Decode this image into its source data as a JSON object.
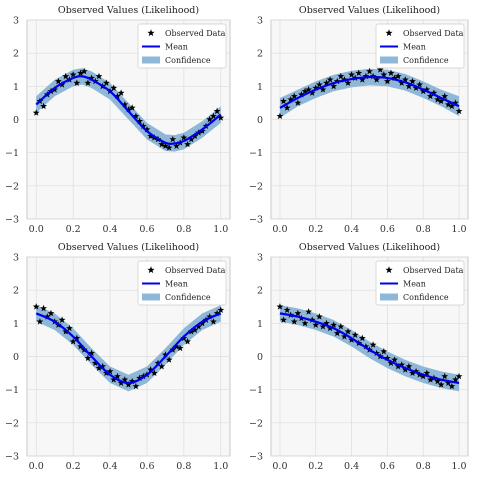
{
  "colors": {
    "mean": "#0000ee",
    "confidence": "#8fb8d8",
    "observed": "#000000",
    "panel_background": "#f7f7f7",
    "grid": "#dddddd"
  },
  "chart_data": [
    {
      "type": "line",
      "title": "Observed Values (Likelihood)",
      "xlim": [
        -0.05,
        1.05
      ],
      "ylim": [
        -3,
        3
      ],
      "xticks": [
        0.0,
        0.2,
        0.4,
        0.6,
        0.8,
        1.0
      ],
      "xtick_labels": [
        "0.0",
        "0.2",
        "0.4",
        "0.6",
        "0.8",
        "1.0"
      ],
      "yticks": [
        -3,
        -2,
        -1,
        0,
        1,
        2,
        3
      ],
      "ytick_labels": [
        "−3",
        "−2",
        "−1",
        "0",
        "1",
        "2",
        "3"
      ],
      "grid": true,
      "legend": {
        "placement": "top-right",
        "entries": [
          "Observed Data",
          "Mean",
          "Confidence"
        ]
      },
      "series": [
        {
          "name": "Mean",
          "x": [
            0.0,
            0.1,
            0.2,
            0.25,
            0.3,
            0.4,
            0.5,
            0.6,
            0.7,
            0.75,
            0.8,
            0.9,
            1.0
          ],
          "values": [
            0.45,
            0.95,
            1.25,
            1.3,
            1.2,
            0.85,
            0.25,
            -0.35,
            -0.7,
            -0.72,
            -0.65,
            -0.3,
            0.15
          ]
        },
        {
          "name": "Confidence",
          "x": [
            0.0,
            0.1,
            0.2,
            0.25,
            0.3,
            0.4,
            0.5,
            0.6,
            0.7,
            0.75,
            0.8,
            0.9,
            1.0
          ],
          "lower": [
            0.2,
            0.7,
            1.0,
            1.05,
            0.95,
            0.6,
            0.0,
            -0.6,
            -0.95,
            -0.97,
            -0.9,
            -0.55,
            -0.1
          ],
          "upper": [
            0.7,
            1.2,
            1.5,
            1.55,
            1.45,
            1.1,
            0.5,
            -0.1,
            -0.45,
            -0.47,
            -0.4,
            -0.05,
            0.4
          ]
        },
        {
          "name": "Observed Data",
          "x": [
            0.0,
            0.02,
            0.04,
            0.06,
            0.08,
            0.1,
            0.12,
            0.14,
            0.16,
            0.18,
            0.2,
            0.22,
            0.24,
            0.26,
            0.28,
            0.3,
            0.32,
            0.34,
            0.36,
            0.38,
            0.4,
            0.42,
            0.44,
            0.46,
            0.48,
            0.5,
            0.52,
            0.54,
            0.56,
            0.58,
            0.6,
            0.62,
            0.64,
            0.66,
            0.68,
            0.7,
            0.72,
            0.74,
            0.76,
            0.78,
            0.8,
            0.82,
            0.84,
            0.86,
            0.88,
            0.9,
            0.92,
            0.94,
            0.96,
            0.98,
            1.0
          ],
          "values": [
            0.2,
            0.55,
            0.4,
            0.75,
            0.85,
            0.9,
            1.15,
            1.05,
            1.3,
            1.2,
            1.35,
            1.1,
            1.4,
            1.45,
            1.1,
            1.25,
            1.15,
            1.3,
            1.0,
            1.1,
            0.85,
            0.95,
            0.7,
            0.8,
            0.45,
            0.3,
            0.35,
            0.1,
            -0.05,
            -0.2,
            -0.3,
            -0.5,
            -0.55,
            -0.6,
            -0.75,
            -0.8,
            -0.85,
            -0.6,
            -0.8,
            -0.7,
            -0.55,
            -0.75,
            -0.6,
            -0.5,
            -0.4,
            -0.35,
            -0.2,
            0.0,
            0.1,
            0.25,
            0.05
          ]
        }
      ]
    },
    {
      "type": "line",
      "title": "Observed Values (Likelihood)",
      "xlim": [
        -0.05,
        1.05
      ],
      "ylim": [
        -3,
        3
      ],
      "xticks": [
        0.0,
        0.2,
        0.4,
        0.6,
        0.8,
        1.0
      ],
      "xtick_labels": [
        "0.0",
        "0.2",
        "0.4",
        "0.6",
        "0.8",
        "1.0"
      ],
      "yticks": [
        -3,
        -2,
        -1,
        0,
        1,
        2,
        3
      ],
      "ytick_labels": [
        "−3",
        "−2",
        "−1",
        "0",
        "1",
        "2",
        "3"
      ],
      "grid": true,
      "legend": {
        "placement": "top-right",
        "entries": [
          "Observed Data",
          "Mean",
          "Confidence"
        ]
      },
      "series": [
        {
          "name": "Mean",
          "x": [
            0.0,
            0.1,
            0.2,
            0.3,
            0.4,
            0.5,
            0.6,
            0.7,
            0.8,
            0.9,
            1.0
          ],
          "values": [
            0.35,
            0.65,
            0.9,
            1.1,
            1.22,
            1.28,
            1.25,
            1.12,
            0.9,
            0.65,
            0.4
          ]
        },
        {
          "name": "Confidence",
          "x": [
            0.0,
            0.1,
            0.2,
            0.3,
            0.4,
            0.5,
            0.6,
            0.7,
            0.8,
            0.9,
            1.0
          ],
          "lower": [
            0.05,
            0.4,
            0.65,
            0.85,
            0.97,
            1.03,
            1.0,
            0.87,
            0.65,
            0.4,
            0.1
          ],
          "upper": [
            0.65,
            0.9,
            1.15,
            1.35,
            1.47,
            1.53,
            1.5,
            1.37,
            1.15,
            0.9,
            0.7
          ]
        },
        {
          "name": "Observed Data",
          "x": [
            0.0,
            0.02,
            0.04,
            0.06,
            0.08,
            0.1,
            0.12,
            0.14,
            0.16,
            0.18,
            0.2,
            0.22,
            0.24,
            0.26,
            0.28,
            0.3,
            0.32,
            0.34,
            0.36,
            0.38,
            0.4,
            0.42,
            0.44,
            0.46,
            0.48,
            0.5,
            0.52,
            0.54,
            0.56,
            0.58,
            0.6,
            0.62,
            0.64,
            0.66,
            0.68,
            0.7,
            0.72,
            0.74,
            0.76,
            0.78,
            0.8,
            0.82,
            0.84,
            0.86,
            0.88,
            0.9,
            0.92,
            0.94,
            0.96,
            0.98,
            1.0
          ],
          "values": [
            0.1,
            0.55,
            0.35,
            0.6,
            0.7,
            0.5,
            0.75,
            0.85,
            0.9,
            0.8,
            0.95,
            1.05,
            0.9,
            1.1,
            1.2,
            1.0,
            1.15,
            1.3,
            1.2,
            1.1,
            1.35,
            1.25,
            1.4,
            1.2,
            1.3,
            1.45,
            1.3,
            1.2,
            1.5,
            1.35,
            1.15,
            1.4,
            1.25,
            1.3,
            1.1,
            1.2,
            1.0,
            1.15,
            0.95,
            1.05,
            0.85,
            0.9,
            0.7,
            0.8,
            0.6,
            0.55,
            0.7,
            0.45,
            0.4,
            0.5,
            0.25
          ]
        }
      ]
    },
    {
      "type": "line",
      "title": "Observed Values (Likelihood)",
      "xlim": [
        -0.05,
        1.05
      ],
      "ylim": [
        -3,
        3
      ],
      "xticks": [
        0.0,
        0.2,
        0.4,
        0.6,
        0.8,
        1.0
      ],
      "xtick_labels": [
        "0.0",
        "0.2",
        "0.4",
        "0.6",
        "0.8",
        "1.0"
      ],
      "yticks": [
        -3,
        -2,
        -1,
        0,
        1,
        2,
        3
      ],
      "ytick_labels": [
        "−3",
        "−2",
        "−1",
        "0",
        "1",
        "2",
        "3"
      ],
      "grid": true,
      "legend": {
        "placement": "top-right",
        "entries": [
          "Observed Data",
          "Mean",
          "Confidence"
        ]
      },
      "series": [
        {
          "name": "Mean",
          "x": [
            0.0,
            0.1,
            0.2,
            0.3,
            0.4,
            0.5,
            0.6,
            0.7,
            0.8,
            0.9,
            1.0
          ],
          "values": [
            1.3,
            1.05,
            0.6,
            0.0,
            -0.55,
            -0.8,
            -0.55,
            0.0,
            0.6,
            1.05,
            1.3
          ]
        },
        {
          "name": "Confidence",
          "x": [
            0.0,
            0.1,
            0.2,
            0.3,
            0.4,
            0.5,
            0.6,
            0.7,
            0.8,
            0.9,
            1.0
          ],
          "lower": [
            1.05,
            0.8,
            0.35,
            -0.25,
            -0.8,
            -1.05,
            -0.8,
            -0.25,
            0.35,
            0.8,
            1.05
          ],
          "upper": [
            1.55,
            1.3,
            0.85,
            0.25,
            -0.3,
            -0.55,
            -0.3,
            0.25,
            0.85,
            1.3,
            1.55
          ]
        },
        {
          "name": "Observed Data",
          "x": [
            0.0,
            0.02,
            0.04,
            0.06,
            0.08,
            0.1,
            0.12,
            0.14,
            0.16,
            0.18,
            0.2,
            0.22,
            0.24,
            0.26,
            0.28,
            0.3,
            0.32,
            0.34,
            0.36,
            0.38,
            0.4,
            0.42,
            0.44,
            0.46,
            0.48,
            0.5,
            0.52,
            0.54,
            0.56,
            0.58,
            0.6,
            0.62,
            0.64,
            0.66,
            0.68,
            0.7,
            0.72,
            0.74,
            0.76,
            0.78,
            0.8,
            0.82,
            0.84,
            0.86,
            0.88,
            0.9,
            0.92,
            0.94,
            0.96,
            0.98,
            1.0
          ],
          "values": [
            1.5,
            1.05,
            1.45,
            1.2,
            1.3,
            1.05,
            0.95,
            1.1,
            0.75,
            0.85,
            0.45,
            0.55,
            0.3,
            0.2,
            -0.05,
            0.1,
            -0.2,
            -0.35,
            -0.3,
            -0.5,
            -0.45,
            -0.7,
            -0.6,
            -0.8,
            -0.7,
            -0.85,
            -0.75,
            -0.9,
            -0.65,
            -0.6,
            -0.55,
            -0.4,
            -0.5,
            -0.2,
            -0.3,
            0.05,
            -0.1,
            0.2,
            0.3,
            0.25,
            0.55,
            0.45,
            0.75,
            0.8,
            0.9,
            1.0,
            1.1,
            1.2,
            1.05,
            1.3,
            1.4
          ]
        }
      ]
    },
    {
      "type": "line",
      "title": "Observed Values (Likelihood)",
      "xlim": [
        -0.05,
        1.05
      ],
      "ylim": [
        -3,
        3
      ],
      "xticks": [
        0.0,
        0.2,
        0.4,
        0.6,
        0.8,
        1.0
      ],
      "xtick_labels": [
        "0.0",
        "0.2",
        "0.4",
        "0.6",
        "0.8",
        "1.0"
      ],
      "yticks": [
        -3,
        -2,
        -1,
        0,
        1,
        2,
        3
      ],
      "ytick_labels": [
        "−3",
        "−2",
        "−1",
        "0",
        "1",
        "2",
        "3"
      ],
      "grid": true,
      "legend": {
        "placement": "top-right",
        "entries": [
          "Observed Data",
          "Mean",
          "Confidence"
        ]
      },
      "series": [
        {
          "name": "Mean",
          "x": [
            0.0,
            0.1,
            0.2,
            0.3,
            0.4,
            0.5,
            0.6,
            0.7,
            0.8,
            0.9,
            1.0
          ],
          "values": [
            1.3,
            1.2,
            1.05,
            0.85,
            0.55,
            0.2,
            -0.1,
            -0.35,
            -0.55,
            -0.7,
            -0.8
          ]
        },
        {
          "name": "Confidence",
          "x": [
            0.0,
            0.1,
            0.2,
            0.3,
            0.4,
            0.5,
            0.6,
            0.7,
            0.8,
            0.9,
            1.0
          ],
          "lower": [
            1.05,
            0.95,
            0.8,
            0.6,
            0.3,
            -0.05,
            -0.35,
            -0.6,
            -0.8,
            -0.95,
            -1.05
          ],
          "upper": [
            1.55,
            1.45,
            1.3,
            1.1,
            0.8,
            0.45,
            0.15,
            -0.1,
            -0.3,
            -0.45,
            -0.55
          ]
        },
        {
          "name": "Observed Data",
          "x": [
            0.0,
            0.02,
            0.04,
            0.06,
            0.08,
            0.1,
            0.12,
            0.14,
            0.16,
            0.18,
            0.2,
            0.22,
            0.24,
            0.26,
            0.28,
            0.3,
            0.32,
            0.34,
            0.36,
            0.38,
            0.4,
            0.42,
            0.44,
            0.46,
            0.48,
            0.5,
            0.52,
            0.54,
            0.56,
            0.58,
            0.6,
            0.62,
            0.64,
            0.66,
            0.68,
            0.7,
            0.72,
            0.74,
            0.76,
            0.78,
            0.8,
            0.82,
            0.84,
            0.86,
            0.88,
            0.9,
            0.92,
            0.94,
            0.96,
            0.98,
            1.0
          ],
          "values": [
            1.5,
            1.1,
            1.4,
            1.25,
            1.05,
            1.3,
            1.15,
            1.0,
            1.35,
            1.1,
            0.95,
            1.2,
            0.9,
            1.0,
            0.85,
            0.95,
            0.7,
            0.9,
            0.6,
            0.75,
            0.5,
            0.65,
            0.4,
            0.55,
            0.3,
            0.2,
            0.35,
            0.1,
            0.0,
            0.15,
            -0.05,
            -0.2,
            -0.1,
            -0.3,
            -0.25,
            -0.4,
            -0.3,
            -0.5,
            -0.45,
            -0.55,
            -0.6,
            -0.5,
            -0.7,
            -0.65,
            -0.75,
            -0.85,
            -0.6,
            -0.8,
            -0.9,
            -0.7,
            -0.6
          ]
        }
      ]
    }
  ]
}
